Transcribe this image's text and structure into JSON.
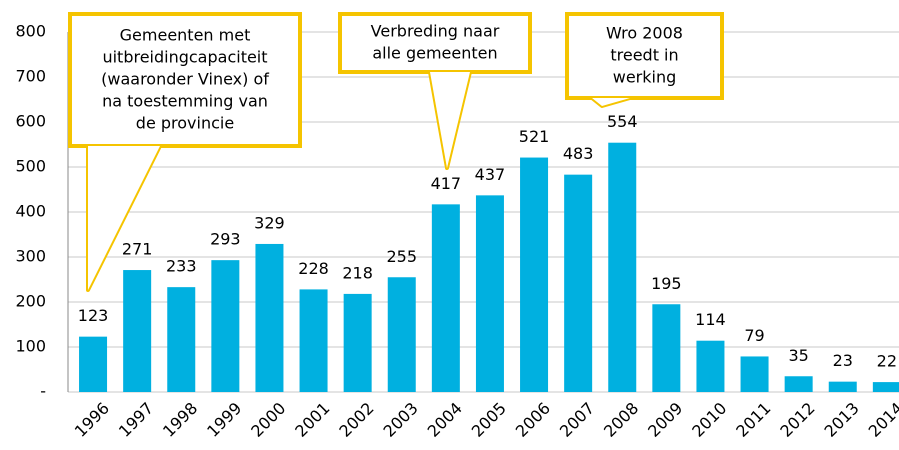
{
  "chart_data": {
    "type": "bar",
    "categories": [
      "1996",
      "1997",
      "1998",
      "1999",
      "2000",
      "2001",
      "2002",
      "2003",
      "2004",
      "2005",
      "2006",
      "2007",
      "2008",
      "2009",
      "2010",
      "2011",
      "2012",
      "2013",
      "2014"
    ],
    "values": [
      123,
      271,
      233,
      293,
      329,
      228,
      218,
      255,
      417,
      437,
      521,
      483,
      554,
      195,
      114,
      79,
      35,
      23,
      22
    ],
    "color": "#00b0e0",
    "ylim": [
      0,
      800
    ],
    "yticks": [
      {
        "value": 0,
        "label": "-"
      },
      100,
      200,
      300,
      400,
      500,
      600,
      700,
      800
    ],
    "grid": true,
    "annotations": [
      {
        "lines": [
          "Gemeenten met",
          "uitbreidingcapaciteit",
          "(waaronder Vinex) of",
          "na toestemming van",
          "de provincie"
        ]
      },
      {
        "lines": [
          "Verbreding naar",
          "alle gemeenten"
        ]
      },
      {
        "lines": [
          "Wro 2008",
          "treedt in",
          "werking"
        ]
      }
    ]
  }
}
